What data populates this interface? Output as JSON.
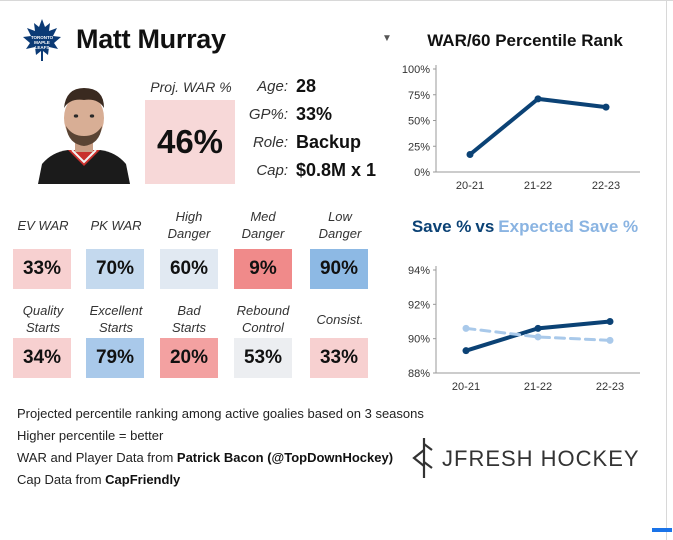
{
  "player": {
    "name": "Matt Murray",
    "team_logo_icon": "maple-leafs-logo",
    "photo_icon": "player-headshot"
  },
  "summary": {
    "proj_war_label": "Proj. WAR %",
    "proj_war_value": "46%",
    "age_label": "Age:",
    "age_value": "28",
    "gp_label": "GP%:",
    "gp_value": "33%",
    "role_label": "Role:",
    "role_value": "Backup",
    "cap_label": "Cap:",
    "cap_value": "$0.8M x 1"
  },
  "metrics_row1": [
    {
      "label_line1": "EV WAR",
      "label_line2": "",
      "value": "33%",
      "color": "#f7d0d0"
    },
    {
      "label_line1": "PK WAR",
      "label_line2": "",
      "value": "70%",
      "color": "#c4d9ee"
    },
    {
      "label_line1": "High",
      "label_line2": "Danger",
      "value": "60%",
      "color": "#e1e9f2"
    },
    {
      "label_line1": "Med",
      "label_line2": "Danger",
      "value": "9%",
      "color": "#f08a8a"
    },
    {
      "label_line1": "Low",
      "label_line2": "Danger",
      "value": "90%",
      "color": "#8db9e4"
    }
  ],
  "metrics_row2": [
    {
      "label_line1": "Quality",
      "label_line2": "Starts",
      "value": "34%",
      "color": "#f7d0d0"
    },
    {
      "label_line1": "Excellent",
      "label_line2": "Starts",
      "value": "79%",
      "color": "#a9c9ea"
    },
    {
      "label_line1": "Bad",
      "label_line2": "Starts",
      "value": "20%",
      "color": "#f3a1a1"
    },
    {
      "label_line1": "Rebound",
      "label_line2": "Control",
      "value": "53%",
      "color": "#eceef1"
    },
    {
      "label_line1": "Consist.",
      "label_line2": "",
      "value": "33%",
      "color": "#f7d0d0"
    }
  ],
  "notes": {
    "line1": "Projected percentile ranking among active goalies based on 3 seasons",
    "line2": "Higher percentile = better",
    "line3_prefix": "WAR and Player Data from ",
    "line3_bold": "Patrick Bacon (@TopDownHockey)",
    "line4_prefix": "Cap Data from ",
    "line4_bold": "CapFriendly"
  },
  "brand": {
    "name": "JFRESH HOCKEY",
    "icon": "jfresh-logo-icon"
  },
  "colors": {
    "dark_blue": "#0b4275",
    "light_blue": "#a9c9ea",
    "expected_title": "#8ab4e2"
  },
  "chart_data": [
    {
      "type": "line",
      "title": "WAR/60 Percentile Rank",
      "x": [
        "20-21",
        "21-22",
        "22-23"
      ],
      "series": [
        {
          "name": "WAR/60 Percentile Rank",
          "values": [
            17,
            71,
            63
          ]
        }
      ],
      "ylim": [
        0,
        100
      ],
      "yticks": [
        0,
        25,
        50,
        75,
        100
      ],
      "ytick_labels": [
        "0%",
        "25%",
        "50%",
        "75%",
        "100%"
      ],
      "xlabel": "",
      "ylabel": ""
    },
    {
      "type": "line",
      "title_part1": "Save %",
      "title_part2": "vs",
      "title_part3": "Expected Save %",
      "x": [
        "20-21",
        "21-22",
        "22-23"
      ],
      "series": [
        {
          "name": "Save %",
          "values": [
            89.3,
            90.6,
            91.0
          ],
          "style": "solid"
        },
        {
          "name": "Expected Save %",
          "values": [
            90.6,
            90.1,
            89.9
          ],
          "style": "dashed"
        }
      ],
      "ylim": [
        88,
        94
      ],
      "yticks": [
        88,
        90,
        92,
        94
      ],
      "ytick_labels": [
        "88%",
        "90%",
        "92%",
        "94%"
      ],
      "xlabel": "",
      "ylabel": ""
    }
  ]
}
